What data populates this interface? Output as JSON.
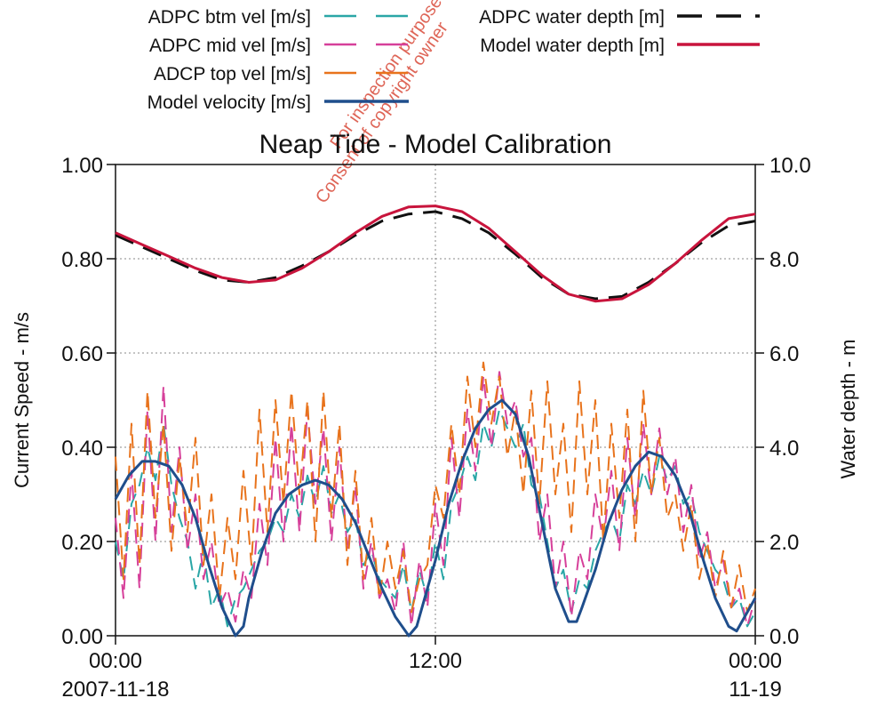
{
  "chart_data": {
    "type": "line",
    "title": "Neap Tide - Model Calibration",
    "xlabel": "",
    "ylabel_left": "Current Speed - m/s",
    "ylabel_right": "Water depth - m",
    "ylim_left": [
      0,
      1
    ],
    "ylim_right": [
      0,
      10
    ],
    "xlim": [
      0,
      24
    ],
    "grid": true,
    "legend_position": "top",
    "x_ticks": [
      {
        "value": 0,
        "line1": "00:00",
        "line2": "2007-11-18"
      },
      {
        "value": 12,
        "line1": "12:00",
        "line2": ""
      },
      {
        "value": 24,
        "line1": "00:00",
        "line2": "11-19"
      }
    ],
    "y_ticks_left": [
      "0.00",
      "0.20",
      "0.40",
      "0.60",
      "0.80",
      "1.00"
    ],
    "y_ticks_right": [
      "0.0",
      "2.0",
      "4.0",
      "6.0",
      "8.0",
      "10.0"
    ],
    "watermark": "Consent of copyright owner / For inspection purposes",
    "series": [
      {
        "name": "ADPC btm vel [m/s]",
        "axis": "left",
        "color": "#2aa6a6",
        "dash": "dashed",
        "x": [
          0,
          0.3,
          0.6,
          0.9,
          1.2,
          1.5,
          1.8,
          2.1,
          2.4,
          2.7,
          3.0,
          3.3,
          3.6,
          3.9,
          4.2,
          4.5,
          4.8,
          5.1,
          5.4,
          5.7,
          6.0,
          6.3,
          6.6,
          6.9,
          7.2,
          7.5,
          7.8,
          8.1,
          8.4,
          8.7,
          9.0,
          9.3,
          9.6,
          9.9,
          10.2,
          10.5,
          10.8,
          11.1,
          11.4,
          11.7,
          12.0,
          12.3,
          12.6,
          12.9,
          13.2,
          13.5,
          13.8,
          14.1,
          14.4,
          14.7,
          15.0,
          15.3,
          15.6,
          15.9,
          16.2,
          16.5,
          16.8,
          17.1,
          17.4,
          17.7,
          18.0,
          18.3,
          18.6,
          18.9,
          19.2,
          19.5,
          19.8,
          20.1,
          20.4,
          20.7,
          21.0,
          21.3,
          21.6,
          21.9,
          22.2,
          22.5,
          22.8,
          23.1,
          23.4,
          23.7,
          24.0
        ],
        "values": [
          0.2,
          0.12,
          0.28,
          0.32,
          0.4,
          0.33,
          0.45,
          0.32,
          0.25,
          0.2,
          0.1,
          0.18,
          0.06,
          0.1,
          0.02,
          0.08,
          0.1,
          0.14,
          0.18,
          0.2,
          0.25,
          0.22,
          0.3,
          0.25,
          0.34,
          0.28,
          0.36,
          0.26,
          0.3,
          0.22,
          0.25,
          0.15,
          0.18,
          0.12,
          0.1,
          0.08,
          0.15,
          0.05,
          0.14,
          0.08,
          0.2,
          0.12,
          0.28,
          0.32,
          0.38,
          0.33,
          0.45,
          0.4,
          0.48,
          0.44,
          0.4,
          0.45,
          0.32,
          0.3,
          0.2,
          0.1,
          0.14,
          0.05,
          0.12,
          0.1,
          0.18,
          0.22,
          0.25,
          0.2,
          0.32,
          0.28,
          0.35,
          0.3,
          0.38,
          0.33,
          0.36,
          0.28,
          0.3,
          0.22,
          0.18,
          0.14,
          0.12,
          0.06,
          0.08,
          0.02,
          0.05
        ]
      },
      {
        "name": "ADPC mid vel [m/s]",
        "axis": "left",
        "color": "#d6409a",
        "dash": "dashed",
        "x": [
          0,
          0.3,
          0.6,
          0.9,
          1.2,
          1.5,
          1.8,
          2.1,
          2.4,
          2.7,
          3.0,
          3.3,
          3.6,
          3.9,
          4.2,
          4.5,
          4.8,
          5.1,
          5.4,
          5.7,
          6.0,
          6.3,
          6.6,
          6.9,
          7.2,
          7.5,
          7.8,
          8.1,
          8.4,
          8.7,
          9.0,
          9.3,
          9.6,
          9.9,
          10.2,
          10.5,
          10.8,
          11.1,
          11.4,
          11.7,
          12.0,
          12.3,
          12.6,
          12.9,
          13.2,
          13.5,
          13.8,
          14.1,
          14.4,
          14.7,
          15.0,
          15.3,
          15.6,
          15.9,
          16.2,
          16.5,
          16.8,
          17.1,
          17.4,
          17.7,
          18.0,
          18.3,
          18.6,
          18.9,
          19.2,
          19.5,
          19.8,
          20.1,
          20.4,
          20.7,
          21.0,
          21.3,
          21.6,
          21.9,
          22.2,
          22.5,
          22.8,
          23.1,
          23.4,
          23.7,
          24.0
        ],
        "values": [
          0.25,
          0.08,
          0.35,
          0.1,
          0.48,
          0.2,
          0.53,
          0.22,
          0.4,
          0.18,
          0.3,
          0.12,
          0.2,
          0.06,
          0.1,
          0.03,
          0.14,
          0.08,
          0.28,
          0.15,
          0.42,
          0.2,
          0.45,
          0.22,
          0.48,
          0.28,
          0.44,
          0.2,
          0.4,
          0.18,
          0.32,
          0.1,
          0.2,
          0.08,
          0.12,
          0.05,
          0.2,
          0.02,
          0.16,
          0.06,
          0.28,
          0.15,
          0.42,
          0.25,
          0.48,
          0.35,
          0.55,
          0.4,
          0.56,
          0.45,
          0.5,
          0.38,
          0.42,
          0.2,
          0.3,
          0.1,
          0.2,
          0.04,
          0.18,
          0.12,
          0.3,
          0.2,
          0.35,
          0.18,
          0.42,
          0.25,
          0.45,
          0.3,
          0.44,
          0.3,
          0.38,
          0.22,
          0.32,
          0.16,
          0.22,
          0.1,
          0.16,
          0.06,
          0.1,
          0.02,
          0.08
        ]
      },
      {
        "name": "ADCP top vel  [m/s]",
        "axis": "left",
        "color": "#e8731c",
        "dash": "dashed",
        "x": [
          0,
          0.3,
          0.6,
          0.9,
          1.2,
          1.5,
          1.8,
          2.1,
          2.4,
          2.7,
          3.0,
          3.3,
          3.6,
          3.9,
          4.2,
          4.5,
          4.8,
          5.1,
          5.4,
          5.7,
          6.0,
          6.3,
          6.6,
          6.9,
          7.2,
          7.5,
          7.8,
          8.1,
          8.4,
          8.7,
          9.0,
          9.3,
          9.6,
          9.9,
          10.2,
          10.5,
          10.8,
          11.1,
          11.4,
          11.7,
          12.0,
          12.3,
          12.6,
          12.9,
          13.2,
          13.5,
          13.8,
          14.1,
          14.4,
          14.7,
          15.0,
          15.3,
          15.6,
          15.9,
          16.2,
          16.5,
          16.8,
          17.1,
          17.4,
          17.7,
          18.0,
          18.3,
          18.6,
          18.9,
          19.2,
          19.5,
          19.8,
          20.1,
          20.4,
          20.7,
          21.0,
          21.3,
          21.6,
          21.9,
          22.2,
          22.5,
          22.8,
          23.1,
          23.4,
          23.7,
          24.0
        ],
        "values": [
          0.38,
          0.12,
          0.45,
          0.15,
          0.52,
          0.25,
          0.45,
          0.18,
          0.38,
          0.22,
          0.42,
          0.15,
          0.3,
          0.08,
          0.25,
          0.12,
          0.35,
          0.15,
          0.48,
          0.22,
          0.5,
          0.28,
          0.52,
          0.3,
          0.5,
          0.2,
          0.52,
          0.25,
          0.45,
          0.15,
          0.35,
          0.12,
          0.25,
          0.08,
          0.2,
          0.1,
          0.18,
          0.05,
          0.12,
          0.15,
          0.32,
          0.25,
          0.45,
          0.3,
          0.55,
          0.4,
          0.58,
          0.45,
          0.55,
          0.38,
          0.48,
          0.3,
          0.52,
          0.28,
          0.54,
          0.3,
          0.45,
          0.22,
          0.54,
          0.3,
          0.5,
          0.2,
          0.45,
          0.25,
          0.48,
          0.2,
          0.52,
          0.3,
          0.42,
          0.25,
          0.3,
          0.18,
          0.28,
          0.12,
          0.2,
          0.08,
          0.18,
          0.06,
          0.15,
          0.05,
          0.1
        ]
      },
      {
        "name": "Model velocity [m/s]",
        "axis": "left",
        "color": "#1f4e8c",
        "dash": "solid",
        "x": [
          0,
          0.5,
          1.0,
          1.5,
          2.0,
          2.5,
          3.0,
          3.5,
          4.0,
          4.5,
          4.8,
          5.0,
          5.5,
          6.0,
          6.5,
          7.0,
          7.5,
          8.0,
          8.5,
          9.0,
          9.5,
          10.0,
          10.5,
          11.0,
          11.3,
          11.5,
          12.0,
          12.5,
          13.0,
          13.5,
          14.0,
          14.5,
          15.0,
          15.5,
          16.0,
          16.5,
          17.0,
          17.3,
          17.5,
          18.0,
          18.5,
          19.0,
          19.5,
          20.0,
          20.5,
          21.0,
          21.5,
          22.0,
          22.5,
          23.0,
          23.3,
          23.5,
          24.0
        ],
        "values": [
          0.29,
          0.34,
          0.37,
          0.37,
          0.36,
          0.32,
          0.25,
          0.15,
          0.06,
          0.0,
          0.02,
          0.08,
          0.18,
          0.26,
          0.3,
          0.32,
          0.33,
          0.32,
          0.29,
          0.24,
          0.17,
          0.1,
          0.04,
          0.0,
          0.02,
          0.06,
          0.16,
          0.28,
          0.37,
          0.44,
          0.48,
          0.5,
          0.47,
          0.38,
          0.24,
          0.1,
          0.03,
          0.03,
          0.06,
          0.14,
          0.24,
          0.31,
          0.36,
          0.39,
          0.38,
          0.34,
          0.27,
          0.17,
          0.08,
          0.02,
          0.01,
          0.03,
          0.08
        ]
      },
      {
        "name": "ADPC water depth [m]",
        "axis": "right",
        "color": "#111111",
        "dash": "longdash",
        "x": [
          0,
          1,
          2,
          3,
          4,
          5,
          6,
          7,
          8,
          9,
          10,
          11,
          12,
          13,
          14,
          15,
          16,
          17,
          18,
          19,
          20,
          21,
          22,
          23,
          24
        ],
        "values": [
          8.5,
          8.25,
          8.0,
          7.75,
          7.55,
          7.5,
          7.6,
          7.85,
          8.15,
          8.5,
          8.8,
          8.95,
          9.0,
          8.85,
          8.55,
          8.1,
          7.6,
          7.25,
          7.15,
          7.2,
          7.5,
          7.9,
          8.35,
          8.7,
          8.8
        ]
      },
      {
        "name": "Model water depth [m]",
        "axis": "right",
        "color": "#c8143c",
        "dash": "solid",
        "x": [
          0,
          1,
          2,
          3,
          4,
          5,
          6,
          7,
          8,
          9,
          10,
          11,
          12,
          13,
          14,
          15,
          16,
          17,
          18,
          19,
          20,
          21,
          22,
          23,
          24
        ],
        "values": [
          8.55,
          8.3,
          8.05,
          7.8,
          7.6,
          7.5,
          7.55,
          7.8,
          8.15,
          8.55,
          8.9,
          9.1,
          9.12,
          9.0,
          8.65,
          8.15,
          7.65,
          7.25,
          7.1,
          7.15,
          7.45,
          7.9,
          8.4,
          8.85,
          8.95
        ]
      }
    ]
  }
}
